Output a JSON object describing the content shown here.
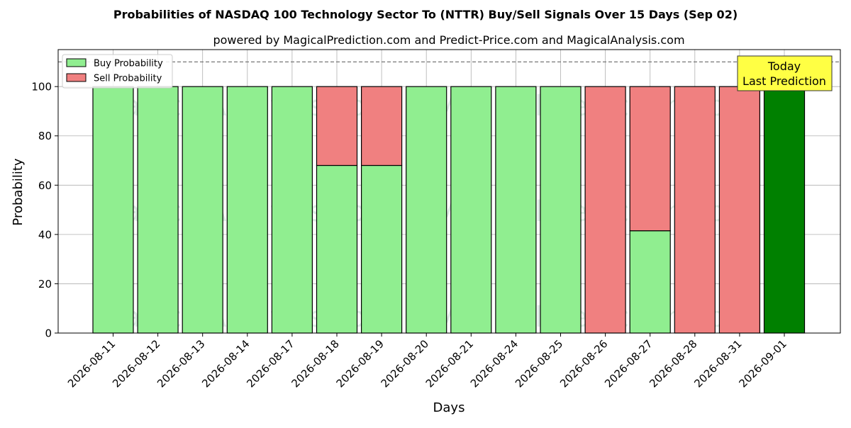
{
  "chart_data": {
    "type": "bar",
    "stacked": true,
    "title": "Probabilities of NASDAQ 100 Technology Sector To (NTTR) Buy/Sell Signals Over 15 Days (Sep 02)",
    "subtitle": "powered by MagicalPrediction.com and Predict-Price.com and MagicalAnalysis.com",
    "xlabel": "Days",
    "ylabel": "Probability",
    "ylim": [
      0,
      115
    ],
    "yticks": [
      0,
      20,
      40,
      60,
      80,
      100
    ],
    "grid": true,
    "legend_position": "top-left",
    "reference_line": {
      "y": 110,
      "style": "dashed"
    },
    "categories": [
      "2026-08-11",
      "2026-08-12",
      "2026-08-13",
      "2026-08-14",
      "2026-08-17",
      "2026-08-18",
      "2026-08-19",
      "2026-08-20",
      "2026-08-21",
      "2026-08-24",
      "2026-08-25",
      "2026-08-26",
      "2026-08-27",
      "2026-08-28",
      "2026-08-31",
      "2026-09-01"
    ],
    "series": [
      {
        "name": "Buy Probability",
        "color": "#90ee90",
        "values": [
          100,
          100,
          100,
          100,
          100,
          68,
          68,
          100,
          100,
          100,
          100,
          0,
          41.5,
          0,
          0,
          100
        ]
      },
      {
        "name": "Sell Probability",
        "color": "#f08080",
        "values": [
          0,
          0,
          0,
          0,
          0,
          32,
          32,
          0,
          0,
          0,
          0,
          100,
          58.5,
          100,
          100,
          0
        ]
      }
    ],
    "highlight": {
      "index": 15,
      "color": "#008000"
    },
    "annotation": {
      "line1": "Today",
      "line2": "Last Prediction",
      "color": "#ffff44"
    },
    "watermarks": [
      "MagicalAnalysis.com",
      "MagicalPrediction.com"
    ]
  }
}
